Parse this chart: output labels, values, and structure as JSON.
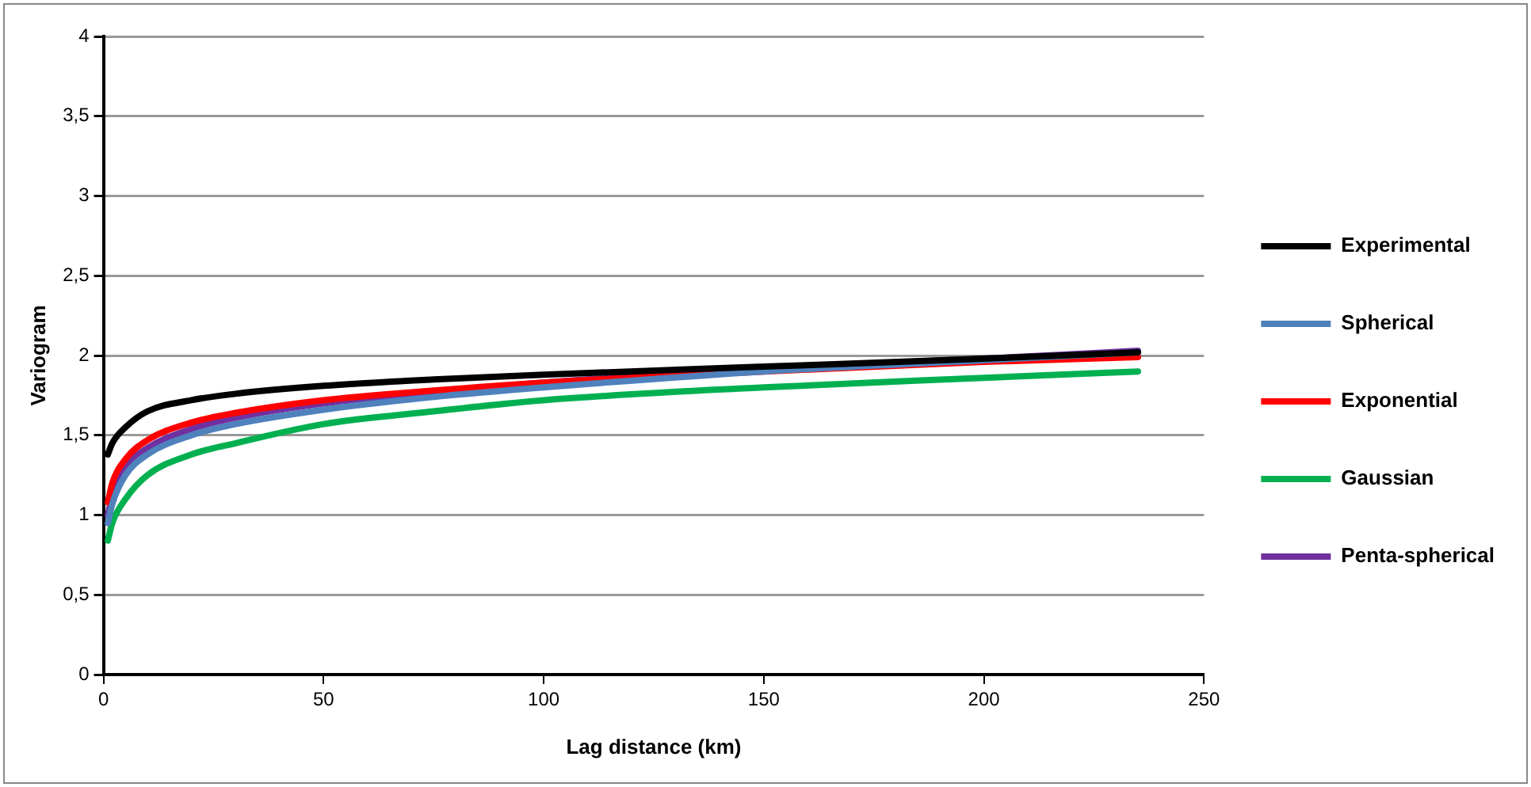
{
  "chart_data": {
    "type": "line",
    "xlabel": "Lag distance (km)",
    "ylabel": "Variogram",
    "x": [
      1,
      2,
      5,
      10,
      20,
      30,
      50,
      75,
      100,
      150,
      200,
      235
    ],
    "series": [
      {
        "name": "Experimental",
        "color": "#000000",
        "values": [
          1.38,
          1.45,
          1.55,
          1.65,
          1.72,
          1.76,
          1.81,
          1.85,
          1.88,
          1.93,
          1.98,
          2.02
        ]
      },
      {
        "name": "Spherical",
        "color": "#4f81bd",
        "values": [
          0.95,
          1.07,
          1.25,
          1.38,
          1.5,
          1.57,
          1.66,
          1.74,
          1.8,
          1.9,
          1.97,
          2.02
        ]
      },
      {
        "name": "Exponential",
        "color": "#ff0000",
        "values": [
          1.08,
          1.2,
          1.35,
          1.47,
          1.58,
          1.64,
          1.72,
          1.78,
          1.83,
          1.9,
          1.96,
          1.99
        ]
      },
      {
        "name": "Gaussian",
        "color": "#00b050",
        "values": [
          0.84,
          0.95,
          1.1,
          1.25,
          1.38,
          1.45,
          1.57,
          1.65,
          1.72,
          1.8,
          1.86,
          1.9
        ]
      },
      {
        "name": "Penta-spherical",
        "color": "#7030a0",
        "values": [
          1.0,
          1.12,
          1.3,
          1.42,
          1.54,
          1.61,
          1.7,
          1.77,
          1.83,
          1.92,
          1.98,
          2.03
        ]
      }
    ],
    "xlim": [
      0,
      250
    ],
    "xticks": [
      0,
      50,
      100,
      150,
      200,
      250
    ],
    "ylim": [
      0,
      4
    ],
    "yticks": [
      0,
      {
        "value": 0.5,
        "label": "0,5"
      },
      1,
      {
        "value": 1.5,
        "label": "1,5"
      },
      2,
      {
        "value": 2.5,
        "label": "2,5"
      },
      3,
      {
        "value": 3.5,
        "label": "3,5"
      },
      4
    ],
    "grid": "y",
    "legend": "right",
    "marker": "none",
    "line_style": "solid"
  }
}
